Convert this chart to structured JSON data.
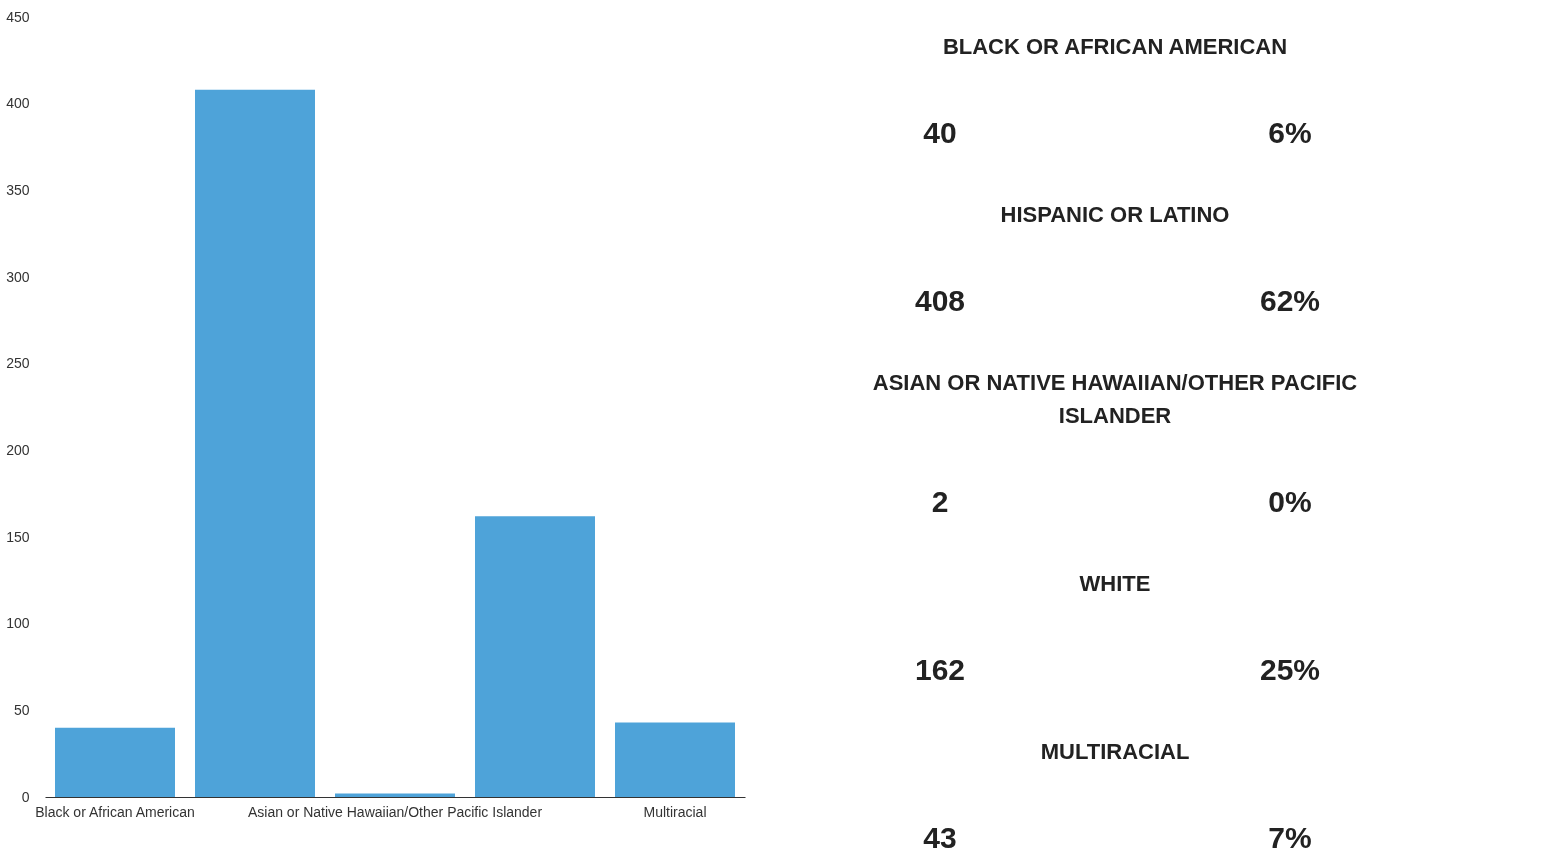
{
  "chart_data": [
    {
      "type": "bar",
      "categories": [
        "Black or African American",
        null,
        "Asian or Native Hawaiian/Other Pacific Islander",
        null,
        "Multiracial"
      ],
      "values": [
        40,
        408,
        2,
        162,
        43
      ],
      "color": "#4ea3d9",
      "ylim": [
        0,
        450
      ],
      "yticks": [
        0,
        50,
        100,
        150,
        200,
        250,
        300,
        350,
        400,
        450
      ],
      "grid": false
    },
    {
      "type": "other",
      "annotations": [
        "BLACK OR AFRICAN AMERICAN",
        "40",
        "6%",
        "HISPANIC OR LATINO",
        "408",
        "62%",
        "ASIAN OR NATIVE HAWAIIAN/OTHER PACIFIC ISLANDER",
        "2",
        "0%",
        "WHITE",
        "162",
        "25%",
        "MULTIRACIAL",
        "43",
        "7%"
      ]
    }
  ]
}
